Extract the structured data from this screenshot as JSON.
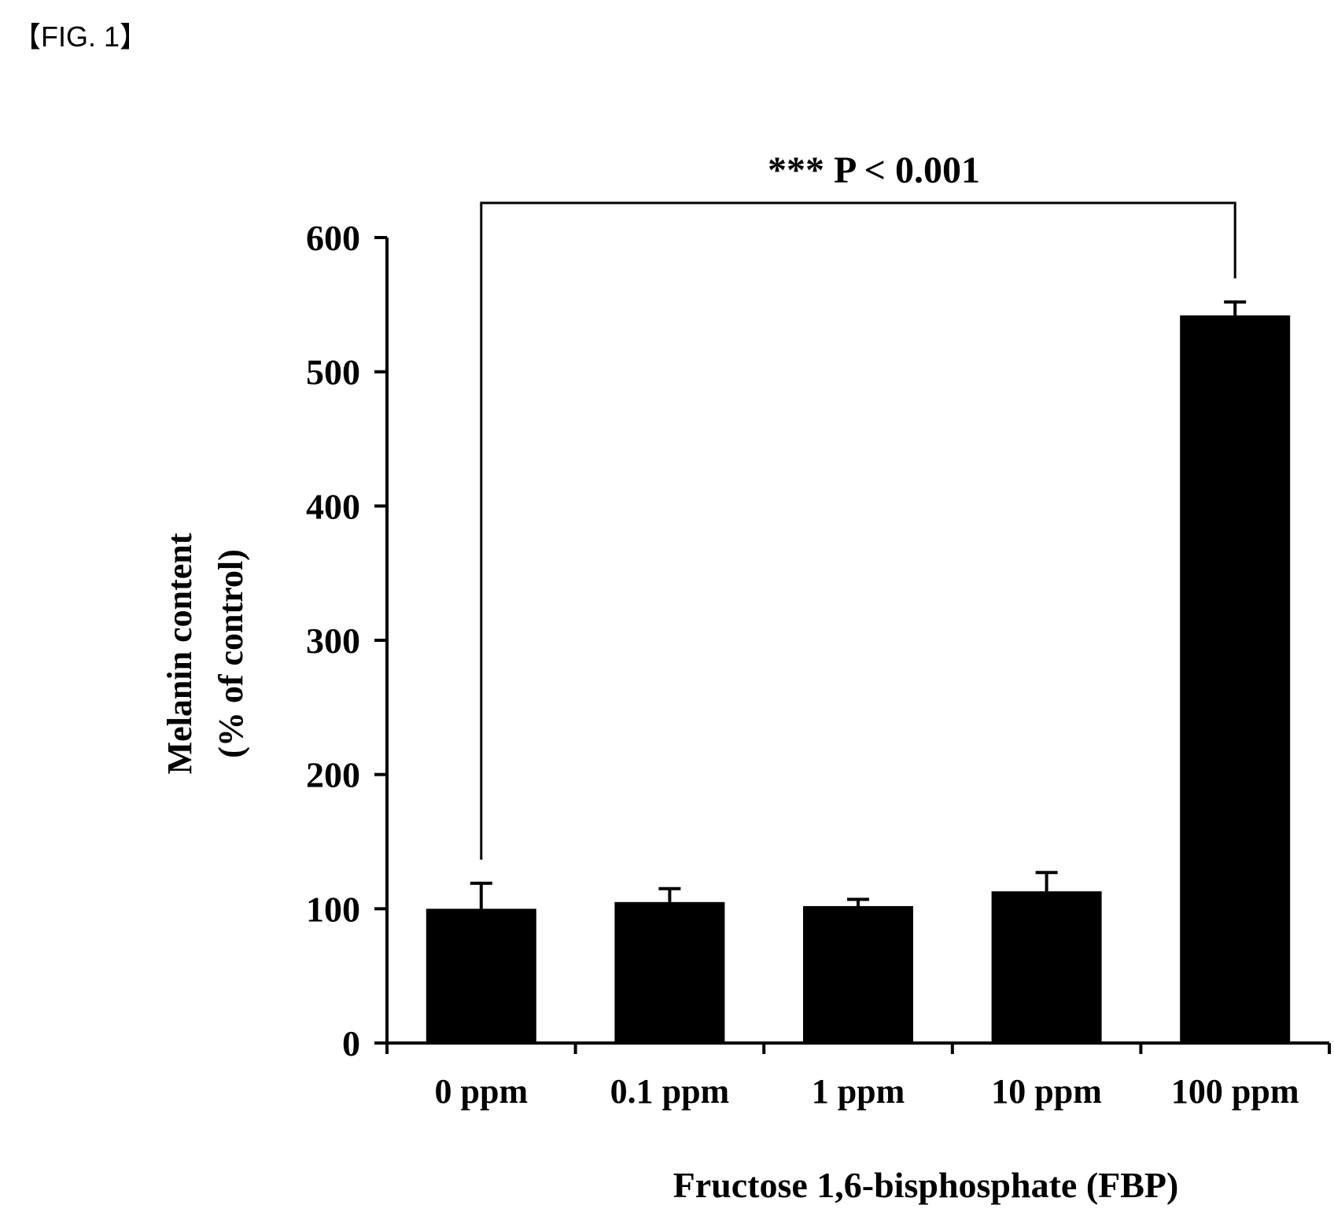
{
  "figure_label": "【FIG. 1】",
  "chart_data": {
    "type": "bar",
    "title": "",
    "xlabel": "Fructose 1,6-bisphosphate (FBP)",
    "ylabel_line1": "Melanin content",
    "ylabel_line2": "(% of control)",
    "categories": [
      "0 ppm",
      "0.1 ppm",
      "1 ppm",
      "10 ppm",
      "100 ppm"
    ],
    "values": [
      100,
      105,
      102,
      113,
      542
    ],
    "errors": [
      19,
      10,
      5,
      14,
      10
    ],
    "ylim": [
      0,
      600
    ],
    "yticks": [
      0,
      100,
      200,
      300,
      400,
      500,
      600
    ],
    "grid": false,
    "bar_color": "#000000",
    "annotation": {
      "text": "*** P < 0.001",
      "from_category": "0 ppm",
      "to_category": "100 ppm"
    }
  }
}
